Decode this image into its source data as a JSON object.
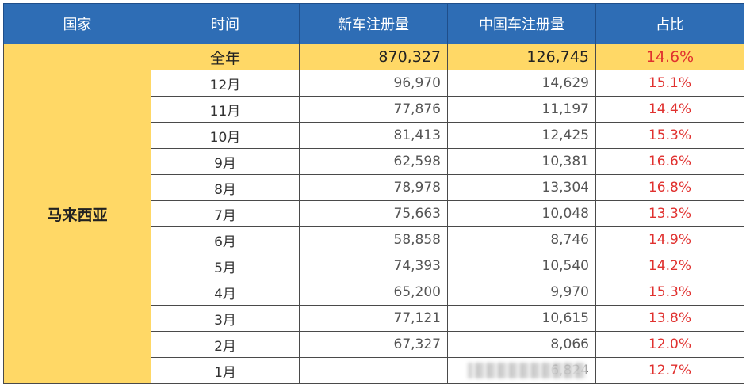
{
  "header": {
    "country": "国家",
    "time": "时间",
    "new_reg": "新车注册量",
    "china_reg": "中国车注册量",
    "share": "占比"
  },
  "country": "马来西亚",
  "total": {
    "period": "全年",
    "new_reg": "870,327",
    "china_reg": "126,745",
    "share": "14.6%"
  },
  "rows": [
    {
      "month": "12月",
      "new_reg": "96,970",
      "china_reg": "14,629",
      "share": "15.1%"
    },
    {
      "month": "11月",
      "new_reg": "77,876",
      "china_reg": "11,197",
      "share": "14.4%"
    },
    {
      "month": "10月",
      "new_reg": "81,413",
      "china_reg": "12,425",
      "share": "15.3%"
    },
    {
      "month": "9月",
      "new_reg": "62,598",
      "china_reg": "10,381",
      "share": "16.6%"
    },
    {
      "month": "8月",
      "new_reg": "78,978",
      "china_reg": "13,304",
      "share": "16.8%"
    },
    {
      "month": "7月",
      "new_reg": "75,663",
      "china_reg": "10,048",
      "share": "13.3%"
    },
    {
      "month": "6月",
      "new_reg": "58,858",
      "china_reg": "8,746",
      "share": "14.9%"
    },
    {
      "month": "5月",
      "new_reg": "74,393",
      "china_reg": "10,540",
      "share": "14.2%"
    },
    {
      "month": "4月",
      "new_reg": "65,200",
      "china_reg": "9,970",
      "share": "15.3%"
    },
    {
      "month": "3月",
      "new_reg": "77,121",
      "china_reg": "10,615",
      "share": "13.8%"
    },
    {
      "month": "2月",
      "new_reg": "67,327",
      "china_reg": "8,066",
      "share": "12.0%"
    },
    {
      "month": "1月",
      "new_reg": "",
      "china_reg": "6,824",
      "share": "12.7%"
    }
  ]
}
